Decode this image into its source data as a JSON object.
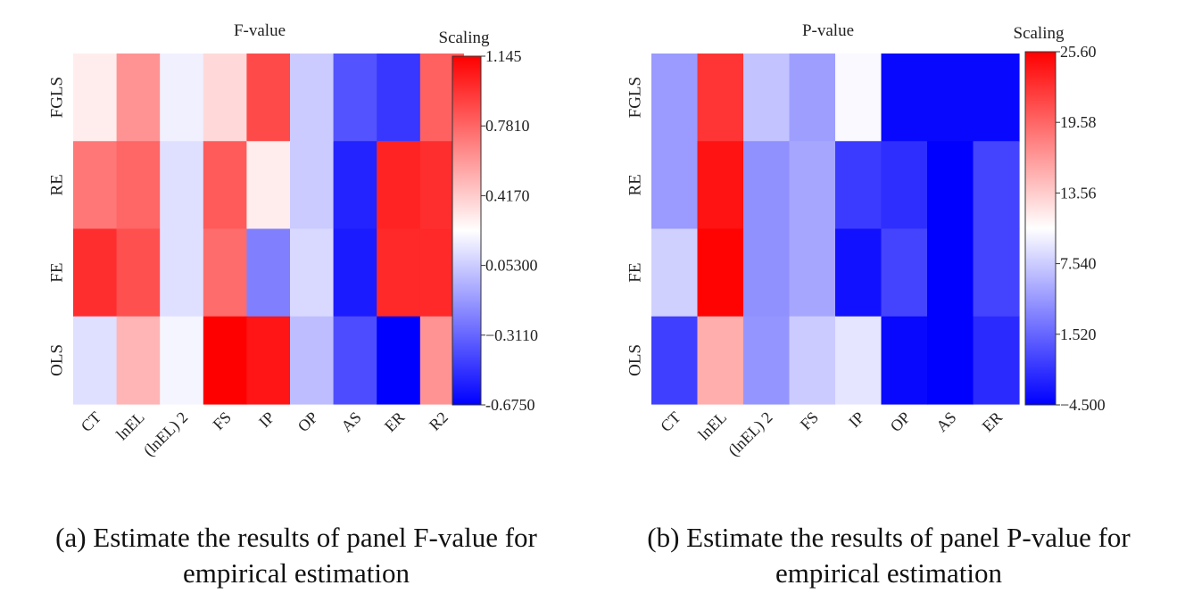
{
  "chart_data": [
    {
      "type": "heatmap",
      "title": "F-value",
      "colorbar_title": "Scaling",
      "rows": [
        "FGLS",
        "RE",
        "FE",
        "OLS"
      ],
      "columns": [
        "CT",
        "lnEL",
        "(lnEL) 2",
        "FS",
        "IP",
        "OP",
        "AS",
        "ER",
        "R2"
      ],
      "values": [
        [
          0.3,
          0.62,
          0.18,
          0.37,
          0.88,
          0.05,
          -0.38,
          -0.48,
          0.8
        ],
        [
          0.72,
          0.78,
          0.12,
          0.82,
          0.3,
          0.05,
          -0.55,
          1.02,
          0.98
        ],
        [
          0.98,
          0.86,
          0.12,
          0.76,
          -0.22,
          0.1,
          -0.58,
          1.0,
          1.0
        ],
        [
          0.12,
          0.5,
          0.2,
          1.145,
          1.07,
          0.0,
          -0.4,
          -0.675,
          0.62
        ]
      ],
      "colorbar_ticks": [
        "1.145",
        "0.7810",
        "0.4170",
        "0.05300",
        "−0.3110",
        "-0.6750"
      ],
      "vmin": -0.675,
      "vmax": 1.145,
      "colormap": {
        "low": "#0000ff",
        "mid": "#ffffff",
        "high": "#ff0000"
      },
      "caption": {
        "line1": "(a) Estimate the results of panel F-value for",
        "line2": "empirical estimation"
      }
    },
    {
      "type": "heatmap",
      "title": "P-value",
      "colorbar_title": "Scaling",
      "rows": [
        "FGLS",
        "RE",
        "FE",
        "OLS"
      ],
      "columns": [
        "CT",
        "lnEL",
        "(lnEL) 2",
        "FS",
        "IP",
        "OP",
        "AS",
        "ER"
      ],
      "values": [
        [
          4.6,
          22.5,
          7.0,
          4.8,
          10.2,
          -4.0,
          -4.0,
          -4.0
        ],
        [
          4.6,
          24.5,
          4.0,
          5.3,
          -1.0,
          -1.8,
          -4.5,
          -0.5
        ],
        [
          7.8,
          25.4,
          4.0,
          5.3,
          -3.5,
          -0.5,
          -4.5,
          -0.5
        ],
        [
          -0.8,
          15.4,
          4.3,
          7.5,
          9.0,
          -4.0,
          -4.5,
          -2.0
        ]
      ],
      "colorbar_ticks": [
        "25.60",
        "19.58",
        "13.56",
        "7.540",
        "1.520",
        "−4.500"
      ],
      "vmin": -4.5,
      "vmax": 25.6,
      "colormap": {
        "low": "#0000ff",
        "mid": "#ffffff",
        "high": "#ff0000"
      },
      "caption": {
        "line1": "(b) Estimate the results of panel P-value for",
        "line2": "empirical estimation"
      }
    }
  ]
}
